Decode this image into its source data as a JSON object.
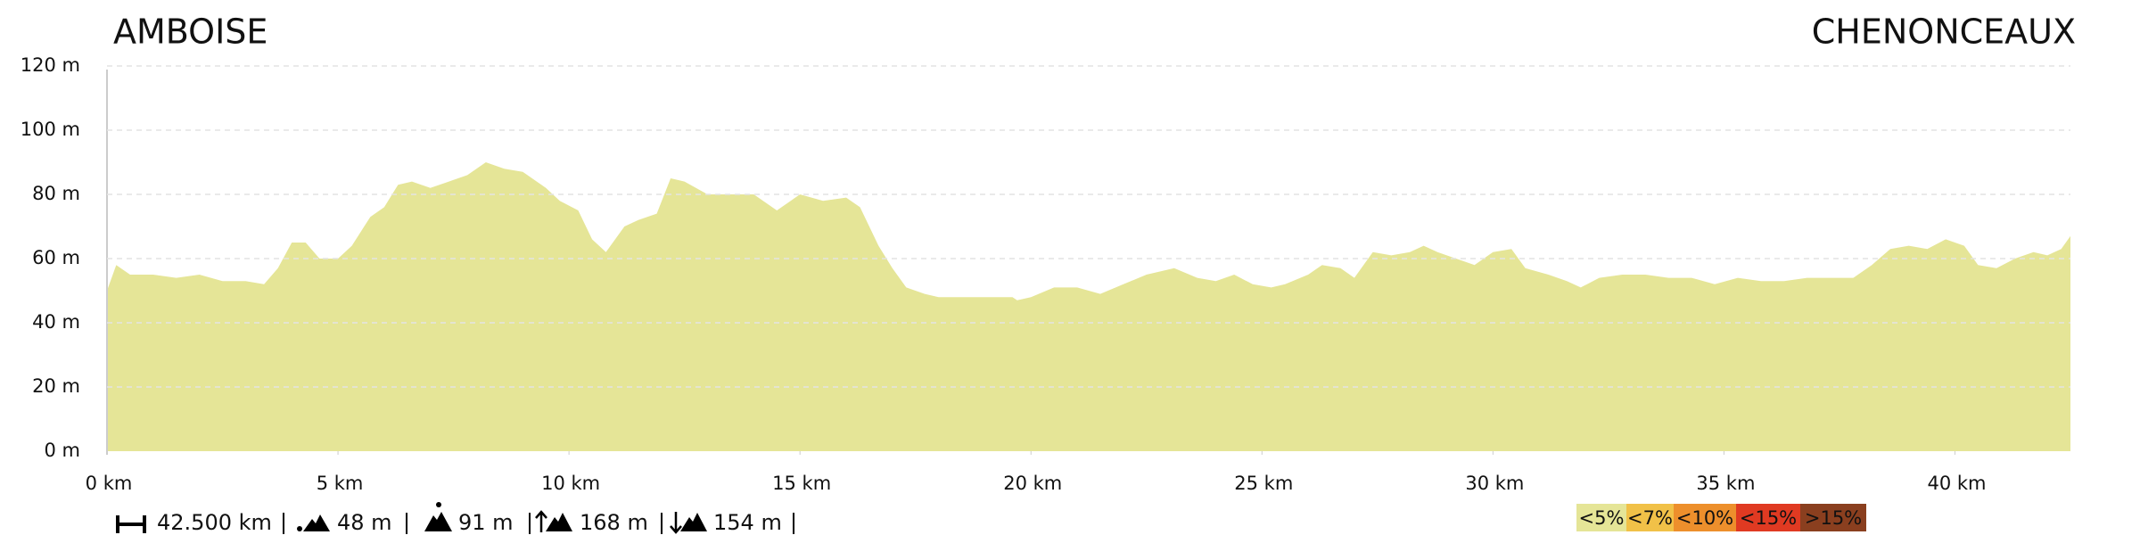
{
  "chart_data": {
    "type": "area",
    "start_label": "AMBOISE",
    "end_label": "CHENONCEAUX",
    "color": "#e5e597",
    "x": [
      0,
      0.2,
      0.5,
      1,
      1.5,
      2,
      2.5,
      3,
      3.4,
      3.7,
      4,
      4.3,
      4.6,
      5,
      5.3,
      5.7,
      6,
      6.3,
      6.6,
      7,
      7.4,
      7.8,
      8.2,
      8.6,
      9,
      9.5,
      9.8,
      10.2,
      10.5,
      10.8,
      11.2,
      11.5,
      11.9,
      12.2,
      12.5,
      13,
      13.5,
      14,
      14.5,
      15,
      15.5,
      16,
      16.3,
      16.7,
      17,
      17.3,
      17.7,
      18,
      19,
      19.6,
      19.7,
      20,
      20.5,
      21,
      21.5,
      22,
      22.5,
      23.1,
      23.6,
      24,
      24.4,
      24.8,
      25.2,
      25.5,
      26,
      26.3,
      26.7,
      27,
      27.4,
      27.8,
      28.2,
      28.5,
      28.8,
      29.2,
      29.6,
      30,
      30.4,
      30.7,
      31.2,
      31.6,
      31.9,
      32.3,
      32.8,
      33.3,
      33.8,
      34.3,
      34.8,
      35.3,
      35.8,
      36.3,
      36.8,
      37.3,
      37.8,
      38.2,
      38.6,
      39,
      39.4,
      39.8,
      40.2,
      40.5,
      40.9,
      41.3,
      41.7,
      42,
      42.3,
      42.5
    ],
    "values": [
      50,
      58,
      55,
      55,
      54,
      55,
      53,
      53,
      52,
      57,
      65,
      65,
      60,
      60,
      64,
      73,
      76,
      83,
      84,
      82,
      84,
      86,
      90,
      88,
      87,
      82,
      78,
      75,
      66,
      62,
      70,
      72,
      74,
      85,
      84,
      80,
      80,
      80,
      75,
      80,
      78,
      79,
      76,
      64,
      57,
      51,
      49,
      48,
      48,
      48,
      47,
      48,
      51,
      51,
      49,
      52,
      55,
      57,
      54,
      53,
      55,
      52,
      51,
      52,
      55,
      58,
      57,
      54,
      62,
      61,
      62,
      64,
      62,
      60,
      58,
      62,
      63,
      57,
      55,
      53,
      51,
      54,
      55,
      55,
      54,
      54,
      52,
      54,
      53,
      53,
      54,
      54,
      54,
      58,
      63,
      64,
      63,
      66,
      64,
      58,
      57,
      60,
      62,
      61,
      63,
      67
    ],
    "xlim": [
      0,
      42.5
    ],
    "ylim": [
      0,
      120
    ],
    "xticks": [
      {
        "value": 0,
        "label": "0 km"
      },
      {
        "value": 5,
        "label": "5 km"
      },
      {
        "value": 10,
        "label": "10 km"
      },
      {
        "value": 15,
        "label": "15 km"
      },
      {
        "value": 20,
        "label": "20 km"
      },
      {
        "value": 25,
        "label": "25 km"
      },
      {
        "value": 30,
        "label": "30 km"
      },
      {
        "value": 35,
        "label": "35 km"
      },
      {
        "value": 40,
        "label": "40 km"
      }
    ],
    "yticks": [
      {
        "value": 0,
        "label": "0 m"
      },
      {
        "value": 20,
        "label": "20 m"
      },
      {
        "value": 40,
        "label": "40 m"
      },
      {
        "value": 60,
        "label": "60 m"
      },
      {
        "value": 80,
        "label": "80 m"
      },
      {
        "value": 100,
        "label": "100 m"
      },
      {
        "value": 120,
        "label": "120 m"
      }
    ],
    "grid": true,
    "stats": [
      "42.500 km",
      "48 m",
      "91 m",
      "168 m",
      "154 m"
    ],
    "legend": [
      {
        "name": "<5%",
        "color": "#e5e597"
      },
      {
        "name": "<7%",
        "color": "#f1c148"
      },
      {
        "name": "<10%",
        "color": "#ed8f2c"
      },
      {
        "name": "<15%",
        "color": "#e03a22"
      },
      {
        "name": ">15%",
        "color": "#8a3f1f"
      }
    ]
  }
}
